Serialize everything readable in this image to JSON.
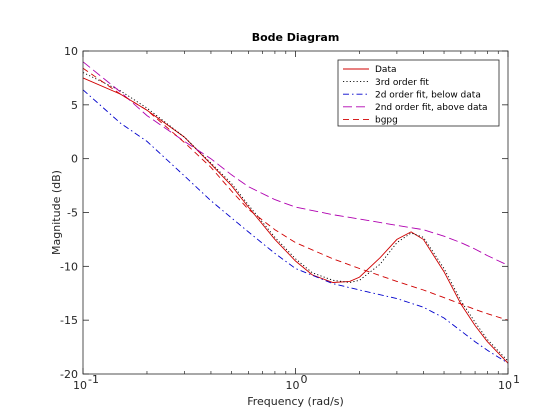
{
  "chart_data": {
    "type": "line",
    "title": "Bode Diagram",
    "xlabel": "Frequency  (rad/s)",
    "ylabel": "Magnitude (dB)",
    "xscale": "log",
    "xlim": [
      0.1,
      10
    ],
    "ylim": [
      -20,
      10
    ],
    "x_ticks": [
      0.1,
      1,
      10
    ],
    "x_tick_labels": [
      "10",
      "10",
      "10"
    ],
    "x_tick_exponents": [
      "-1",
      "0",
      "1"
    ],
    "y_ticks": [
      10,
      5,
      0,
      -5,
      -10,
      -15,
      -20
    ],
    "y_tick_labels": [
      "10",
      "5",
      "0",
      "-5",
      "-10",
      "-15",
      "-20"
    ],
    "grid": false,
    "legend_position": "top-right",
    "series": [
      {
        "name": "Data",
        "color": "#d00000",
        "dash": "solid",
        "x": [
          0.1,
          0.15,
          0.2,
          0.3,
          0.4,
          0.5,
          0.6,
          0.8,
          1.0,
          1.2,
          1.5,
          1.8,
          2.0,
          2.5,
          3.0,
          3.5,
          4.0,
          5.0,
          6.0,
          7.0,
          8.0,
          10.0
        ],
        "y": [
          7.5,
          6.0,
          4.5,
          2.0,
          -0.5,
          -2.5,
          -4.5,
          -7.5,
          -9.5,
          -10.8,
          -11.5,
          -11.4,
          -11.0,
          -9.2,
          -7.5,
          -6.8,
          -7.5,
          -10.5,
          -13.5,
          -15.5,
          -17.0,
          -19.0
        ]
      },
      {
        "name": "3rd order fit",
        "color": "#000000",
        "dash": "dotted",
        "x": [
          0.1,
          0.15,
          0.2,
          0.3,
          0.4,
          0.5,
          0.6,
          0.8,
          1.0,
          1.2,
          1.5,
          1.8,
          2.0,
          2.5,
          3.0,
          3.5,
          4.0,
          5.0,
          6.0,
          7.0,
          8.0,
          10.0
        ],
        "y": [
          8.0,
          6.3,
          4.7,
          2.0,
          -0.4,
          -2.3,
          -4.3,
          -7.3,
          -9.3,
          -10.6,
          -11.3,
          -11.5,
          -11.3,
          -9.8,
          -7.8,
          -6.9,
          -7.3,
          -10.2,
          -13.2,
          -15.2,
          -16.8,
          -18.8
        ]
      },
      {
        "name": "2d order fit, below data",
        "color": "#0000cc",
        "dash": "dashdot",
        "x": [
          0.1,
          0.15,
          0.2,
          0.3,
          0.4,
          0.5,
          0.6,
          0.8,
          1.0,
          1.5,
          2.0,
          3.0,
          4.0,
          5.0,
          6.0,
          7.0,
          8.0,
          10.0
        ],
        "y": [
          6.4,
          3.3,
          1.6,
          -1.6,
          -3.9,
          -5.5,
          -6.8,
          -8.8,
          -10.2,
          -11.6,
          -12.2,
          -13.0,
          -13.8,
          -14.8,
          -16.0,
          -17.0,
          -17.8,
          -19.0
        ]
      },
      {
        "name": "2nd order fit, above data",
        "color": "#b000b0",
        "dash": "dashed",
        "x": [
          0.1,
          0.15,
          0.2,
          0.3,
          0.4,
          0.5,
          0.6,
          0.8,
          1.0,
          1.5,
          2.0,
          3.0,
          4.0,
          5.0,
          6.0,
          7.0,
          8.0,
          10.0
        ],
        "y": [
          9.0,
          6.2,
          4.0,
          1.6,
          0.0,
          -1.5,
          -2.6,
          -3.8,
          -4.5,
          -5.2,
          -5.6,
          -6.2,
          -6.6,
          -7.2,
          -7.8,
          -8.4,
          -9.0,
          -9.9
        ]
      },
      {
        "name": "bgpg",
        "color": "#d00000",
        "dash": "longdash",
        "x": [
          0.1,
          0.15,
          0.2,
          0.3,
          0.4,
          0.5,
          0.6,
          0.8,
          1.0,
          1.5,
          2.0,
          3.0,
          4.0,
          5.0,
          6.0,
          7.0,
          8.0,
          10.0
        ],
        "y": [
          8.4,
          6.0,
          4.5,
          1.5,
          -0.8,
          -3.0,
          -4.7,
          -6.6,
          -7.8,
          -9.3,
          -10.2,
          -11.4,
          -12.2,
          -12.9,
          -13.5,
          -14.0,
          -14.4,
          -15.0
        ]
      }
    ]
  }
}
